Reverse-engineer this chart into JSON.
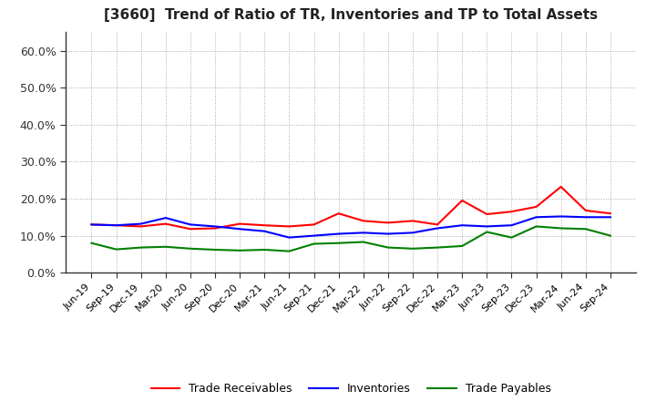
{
  "title": "[3660]  Trend of Ratio of TR, Inventories and TP to Total Assets",
  "labels": [
    "Jun-19",
    "Sep-19",
    "Dec-19",
    "Mar-20",
    "Jun-20",
    "Sep-20",
    "Dec-20",
    "Mar-21",
    "Jun-21",
    "Sep-21",
    "Dec-21",
    "Mar-22",
    "Jun-22",
    "Sep-22",
    "Dec-22",
    "Mar-23",
    "Jun-23",
    "Sep-23",
    "Dec-23",
    "Mar-24",
    "Jun-24",
    "Sep-24"
  ],
  "trade_receivables": [
    0.13,
    0.128,
    0.125,
    0.132,
    0.118,
    0.12,
    0.132,
    0.128,
    0.125,
    0.13,
    0.16,
    0.14,
    0.135,
    0.14,
    0.13,
    0.195,
    0.158,
    0.165,
    0.178,
    0.232,
    0.168,
    0.16
  ],
  "inventories": [
    0.13,
    0.128,
    0.132,
    0.148,
    0.13,
    0.125,
    0.118,
    0.112,
    0.095,
    0.1,
    0.105,
    0.108,
    0.105,
    0.108,
    0.12,
    0.128,
    0.125,
    0.128,
    0.15,
    0.152,
    0.15,
    0.15
  ],
  "trade_payables": [
    0.08,
    0.063,
    0.068,
    0.07,
    0.065,
    0.062,
    0.06,
    0.062,
    0.058,
    0.078,
    0.08,
    0.083,
    0.068,
    0.065,
    0.068,
    0.072,
    0.11,
    0.095,
    0.125,
    0.12,
    0.118,
    0.1
  ],
  "tr_color": "#ff0000",
  "inv_color": "#0000ff",
  "tp_color": "#008000",
  "ylim": [
    0.0,
    0.65
  ],
  "yticks": [
    0.0,
    0.1,
    0.2,
    0.3,
    0.4,
    0.5,
    0.6
  ],
  "ytick_labels": [
    "0.0%",
    "10.0%",
    "20.0%",
    "30.0%",
    "40.0%",
    "50.0%",
    "60.0%"
  ],
  "bg_color": "#ffffff",
  "grid_color": "#aaaaaa",
  "legend_labels": [
    "Trade Receivables",
    "Inventories",
    "Trade Payables"
  ]
}
